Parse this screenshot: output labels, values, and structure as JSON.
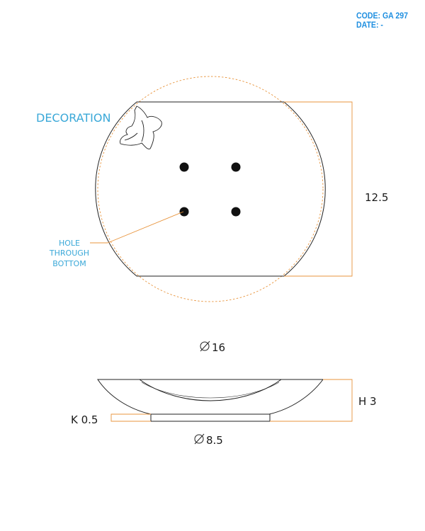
{
  "header": {
    "code": "CODE: GA 297",
    "date": "DATE: -"
  },
  "top_view": {
    "decoration_label": "DECORATION",
    "hole_label_lines": [
      "HOLE",
      "THROUGH",
      "BOTTOM"
    ],
    "height_dim": "12.5",
    "diameter_dim": "16",
    "hole_count": 4
  },
  "side_view": {
    "height_dim": "H 3",
    "base_dim": "K 0.5",
    "base_diameter_dim": "8.5"
  },
  "colors": {
    "dimension_line": "#e8943c",
    "label_blue": "#3aa8d8",
    "header_blue": "#1f8fe0",
    "outline": "#222222"
  }
}
